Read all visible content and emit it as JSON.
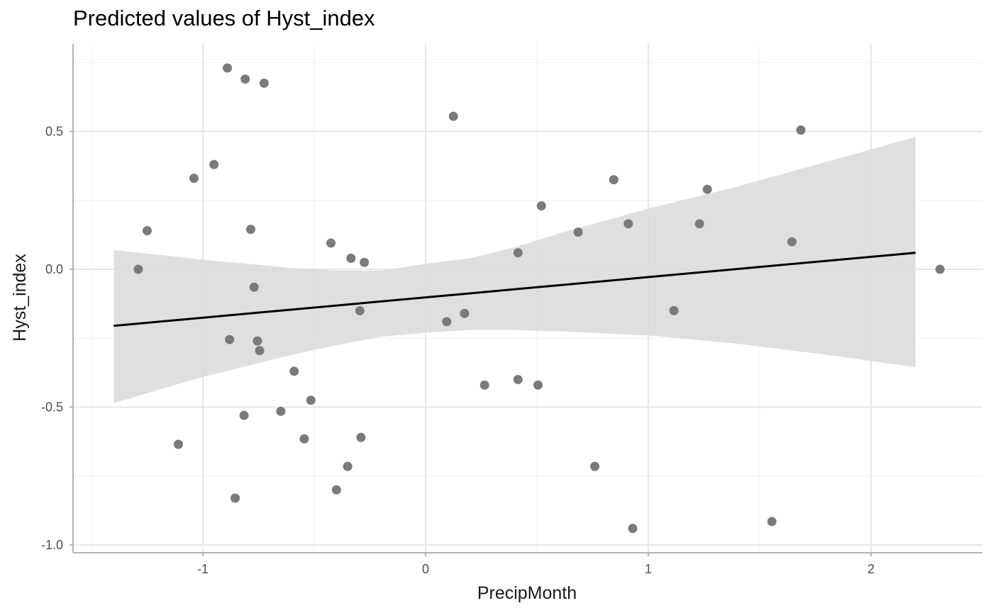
{
  "chart_data": {
    "type": "scatter",
    "title": "Predicted values of Hyst_index",
    "xlabel": "PrecipMonth",
    "ylabel": "Hyst_index",
    "xlim": [
      -1.5,
      2.5
    ],
    "ylim": [
      -1.02,
      0.75
    ],
    "x_ticks": [
      -1,
      0,
      1,
      2
    ],
    "x_tick_labels": [
      "-1",
      "0",
      "1",
      "2"
    ],
    "y_ticks": [
      -1.0,
      -0.5,
      0.0,
      0.5
    ],
    "y_tick_labels": [
      "-1.0",
      "-0.5",
      "0.0",
      "0.5"
    ],
    "grid": true,
    "colors": {
      "points": "#7a7a7a",
      "line": "#000000",
      "ribbon": "#d9d9d9",
      "grid": "#e6e6e6",
      "axis": "#b3b3b3"
    },
    "points": [
      {
        "x": -1.29,
        "y": 0.0
      },
      {
        "x": -1.25,
        "y": 0.14
      },
      {
        "x": -1.11,
        "y": -0.635
      },
      {
        "x": -1.04,
        "y": 0.33
      },
      {
        "x": -0.95,
        "y": 0.38
      },
      {
        "x": -0.89,
        "y": 0.73
      },
      {
        "x": -0.88,
        "y": -0.255
      },
      {
        "x": -0.855,
        "y": -0.83
      },
      {
        "x": -0.81,
        "y": 0.69
      },
      {
        "x": -0.815,
        "y": -0.53
      },
      {
        "x": -0.785,
        "y": 0.145
      },
      {
        "x": -0.77,
        "y": -0.065
      },
      {
        "x": -0.755,
        "y": -0.26
      },
      {
        "x": -0.745,
        "y": -0.295
      },
      {
        "x": -0.725,
        "y": 0.675
      },
      {
        "x": -0.65,
        "y": -0.515
      },
      {
        "x": -0.59,
        "y": -0.37
      },
      {
        "x": -0.545,
        "y": -0.615
      },
      {
        "x": -0.515,
        "y": -0.475
      },
      {
        "x": -0.425,
        "y": 0.095
      },
      {
        "x": -0.4,
        "y": -0.8
      },
      {
        "x": -0.35,
        "y": -0.715
      },
      {
        "x": -0.335,
        "y": 0.04
      },
      {
        "x": -0.295,
        "y": -0.15
      },
      {
        "x": -0.29,
        "y": -0.61
      },
      {
        "x": -0.275,
        "y": 0.025
      },
      {
        "x": 0.095,
        "y": -0.19
      },
      {
        "x": 0.125,
        "y": 0.555
      },
      {
        "x": 0.175,
        "y": -0.16
      },
      {
        "x": 0.265,
        "y": -0.42
      },
      {
        "x": 0.415,
        "y": 0.06
      },
      {
        "x": 0.415,
        "y": -0.4
      },
      {
        "x": 0.505,
        "y": -0.42
      },
      {
        "x": 0.52,
        "y": 0.23
      },
      {
        "x": 0.685,
        "y": 0.135
      },
      {
        "x": 0.76,
        "y": -0.715
      },
      {
        "x": 0.845,
        "y": 0.325
      },
      {
        "x": 0.91,
        "y": 0.165
      },
      {
        "x": 0.93,
        "y": -0.94
      },
      {
        "x": 1.115,
        "y": -0.15
      },
      {
        "x": 1.23,
        "y": 0.165
      },
      {
        "x": 1.265,
        "y": 0.29
      },
      {
        "x": 1.555,
        "y": -0.915
      },
      {
        "x": 1.645,
        "y": 0.1
      },
      {
        "x": 1.685,
        "y": 0.505
      },
      {
        "x": 2.31,
        "y": 0.0
      }
    ],
    "fit_line": {
      "x": [
        -1.4,
        2.2
      ],
      "y": [
        -0.205,
        0.06
      ]
    },
    "ribbon": {
      "x": [
        -1.4,
        -1.0,
        -0.6,
        -0.4,
        -0.2,
        0.0,
        0.2,
        0.4,
        0.6,
        1.0,
        1.4,
        1.8,
        2.2
      ],
      "upper": [
        0.07,
        0.035,
        0.005,
        -0.005,
        -0.005,
        0.02,
        0.04,
        0.08,
        0.13,
        0.22,
        0.3,
        0.39,
        0.48
      ],
      "lower": [
        -0.485,
        -0.39,
        -0.31,
        -0.275,
        -0.245,
        -0.23,
        -0.22,
        -0.22,
        -0.225,
        -0.24,
        -0.27,
        -0.31,
        -0.355
      ]
    }
  }
}
